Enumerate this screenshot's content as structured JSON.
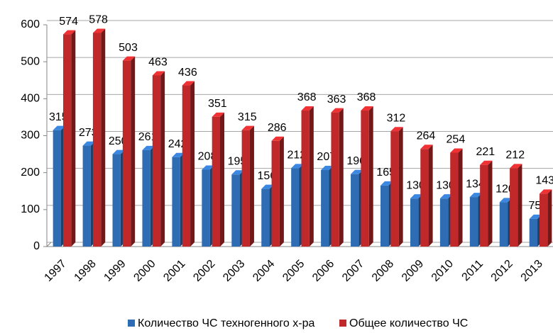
{
  "chart_data": {
    "type": "bar",
    "categories": [
      "1997",
      "1998",
      "1999",
      "2000",
      "2001",
      "2002",
      "2003",
      "2004",
      "2005",
      "2006",
      "2007",
      "2008",
      "2009",
      "2010",
      "2011",
      "2012",
      "2013"
    ],
    "series": [
      {
        "name": "Количество ЧС техногенного х-ра",
        "color": "#2e6db4",
        "values": [
          315,
          273,
          250,
          261,
          242,
          208,
          195,
          156,
          212,
          207,
          196,
          165,
          130,
          130,
          134,
          120,
          75
        ]
      },
      {
        "name": "Общее количество ЧС",
        "color": "#c0282a",
        "values": [
          574,
          578,
          503,
          463,
          436,
          351,
          315,
          286,
          368,
          363,
          368,
          312,
          264,
          254,
          221,
          212,
          143
        ]
      }
    ],
    "ylim": [
      0,
      600
    ],
    "yticks": [
      0,
      100,
      200,
      300,
      400,
      500,
      600
    ],
    "grid": true,
    "legend": "bottom"
  }
}
